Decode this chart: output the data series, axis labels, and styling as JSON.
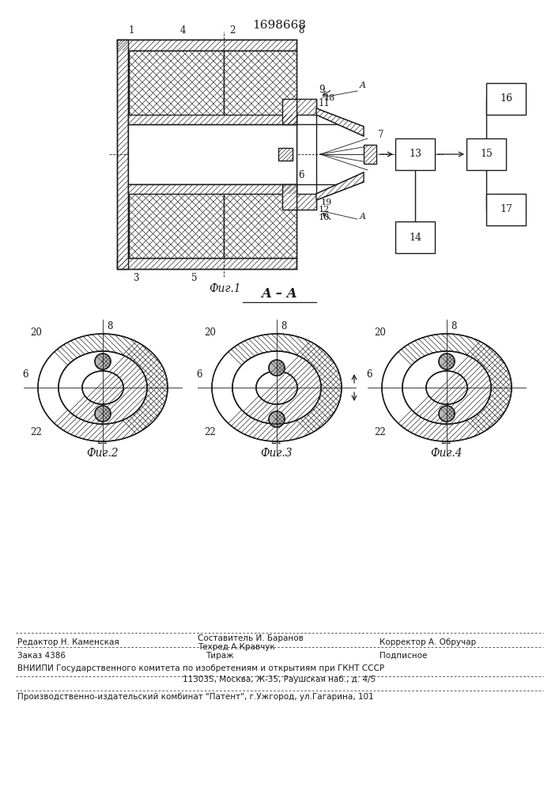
{
  "patent_number": "1698668",
  "lc": "#1a1a1a",
  "fig1_caption": "Фиг.1",
  "fig2_caption": "Фиг.2",
  "fig3_caption": "Фиг.3",
  "fig4_caption": "Фиг.4",
  "section_label": "A – A",
  "footer_editor": "Редактор Н. Каменская",
  "footer_compiler": "Составитель И. Баранов",
  "footer_tech": "Техред А.Кравчук",
  "footer_corrector": "Корректор А. Обручар",
  "footer_order": "Заказ 4386",
  "footer_tirazh": "Тираж",
  "footer_podpisnoe": "Подписное",
  "footer_vniipii": "ВНИИПИ Государственного комитета по изобретениям и открытиям при ГКНТ СССР",
  "footer_address": "113035, Москва, Ж-35, Раушская наб., д. 4/5",
  "footer_production": "Производственно-издательский комбинат \"Патент\", г.Ужгород, ул.Гагарина, 101"
}
